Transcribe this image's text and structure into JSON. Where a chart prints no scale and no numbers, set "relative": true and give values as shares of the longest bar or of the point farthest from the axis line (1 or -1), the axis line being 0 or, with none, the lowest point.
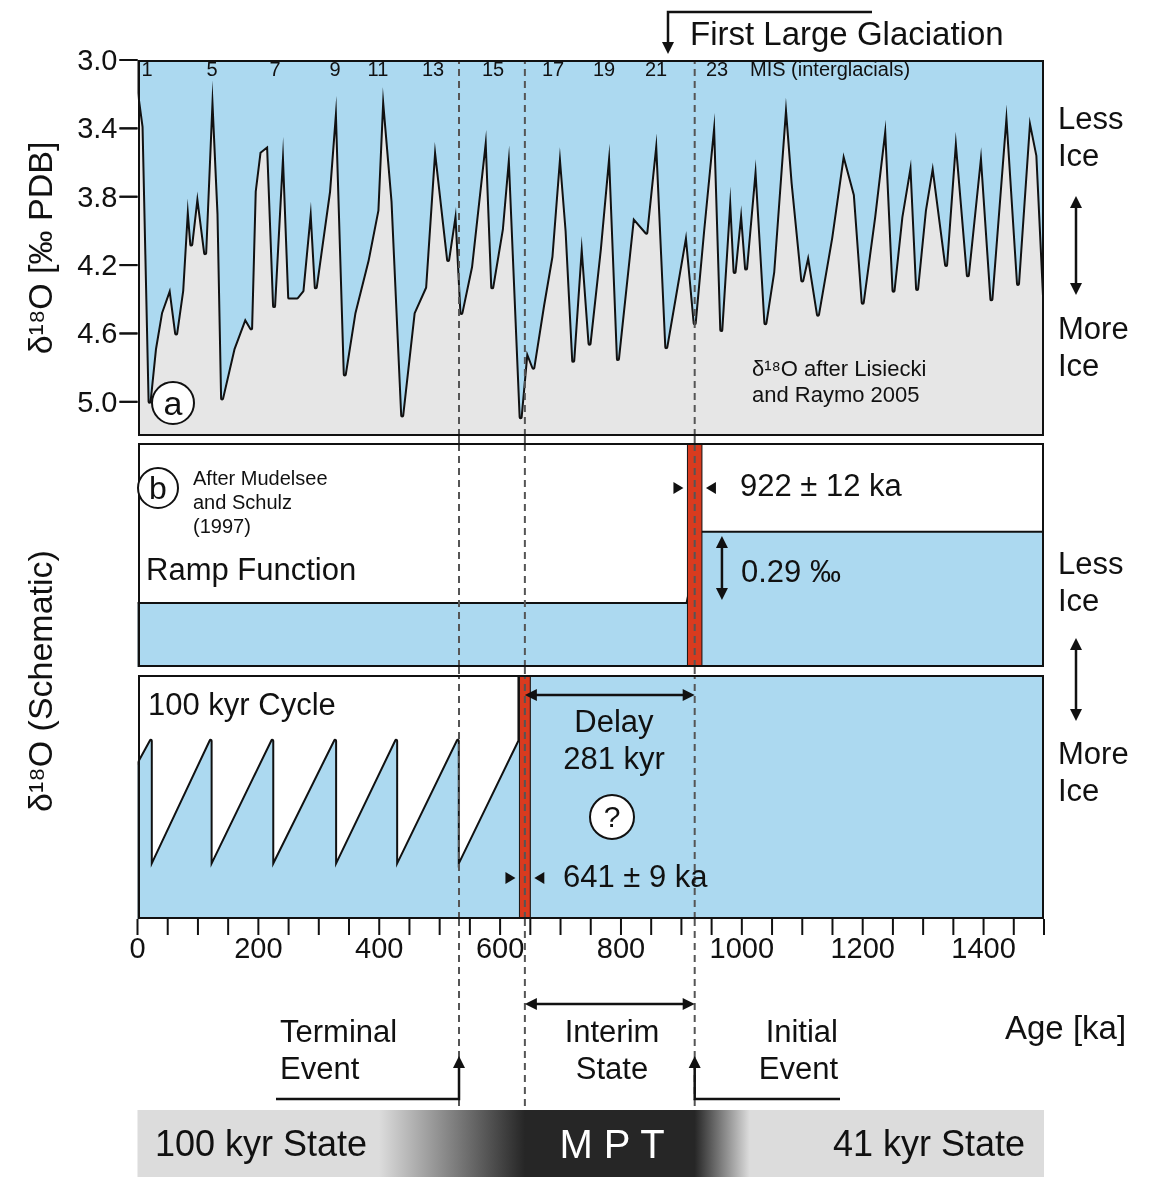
{
  "chart_data": [
    {
      "type": "area",
      "ylabel": "δ¹⁸O [‰ PDB]",
      "color": "#acd9f0",
      "tick_labels": "y",
      "xlim": [
        0,
        1500
      ],
      "ylim": [
        5.2,
        3.0
      ],
      "yticks": [
        {
          "value": 3.0,
          "label": "3.0"
        },
        {
          "value": 3.4,
          "label": "3.4"
        },
        {
          "value": 3.8,
          "label": "3.8"
        },
        {
          "value": 4.2,
          "label": "4.2"
        },
        {
          "value": 4.6,
          "label": "4.6"
        },
        {
          "value": 5.0,
          "label": "5.0"
        }
      ],
      "x": [
        2,
        10,
        20,
        29,
        39,
        54,
        64,
        74,
        83,
        89,
        99,
        112,
        124,
        134,
        140,
        159,
        178,
        188,
        194,
        202,
        216,
        226,
        241,
        251,
        264,
        273,
        287,
        295,
        317,
        329,
        343,
        359,
        381,
        397,
        406,
        422,
        438,
        457,
        476,
        492,
        514,
        527,
        536,
        552,
        577,
        587,
        603,
        615,
        634,
        644,
        655,
        671,
        685,
        699,
        710,
        721,
        735,
        748,
        765,
        781,
        795,
        820,
        842,
        859,
        875,
        892,
        908,
        922,
        936,
        955,
        966,
        981,
        988,
        999,
        1007,
        1023,
        1039,
        1052,
        1073,
        1084,
        1100,
        1110,
        1126,
        1148,
        1168,
        1187,
        1200,
        1219,
        1238,
        1251,
        1264,
        1280,
        1290,
        1303,
        1316,
        1338,
        1354,
        1374,
        1396,
        1413,
        1438,
        1457,
        1476,
        1489,
        1500
      ],
      "values": [
        3.18,
        3.39,
        5.0,
        4.69,
        4.48,
        4.33,
        4.6,
        4.35,
        3.81,
        4.08,
        3.77,
        4.13,
        3.12,
        3.9,
        4.98,
        4.69,
        4.51,
        4.57,
        3.77,
        3.54,
        3.5,
        4.44,
        3.45,
        4.39,
        4.39,
        4.35,
        3.83,
        4.33,
        3.77,
        3.21,
        4.84,
        4.48,
        4.17,
        3.88,
        3.16,
        3.83,
        5.08,
        4.48,
        4.33,
        3.48,
        4.17,
        3.86,
        4.48,
        4.21,
        3.41,
        4.33,
        3.99,
        3.5,
        5.09,
        4.7,
        4.8,
        4.44,
        4.15,
        3.51,
        4.0,
        4.76,
        4.03,
        4.66,
        4.11,
        3.49,
        4.75,
        3.92,
        4.01,
        3.43,
        4.68,
        4.33,
        4.0,
        4.54,
        4.0,
        3.31,
        4.58,
        3.74,
        4.24,
        3.85,
        4.22,
        3.58,
        4.54,
        4.24,
        3.22,
        3.72,
        4.29,
        4.13,
        4.49,
        4.04,
        3.54,
        3.79,
        4.42,
        3.92,
        3.35,
        4.35,
        3.92,
        3.58,
        4.34,
        3.88,
        3.6,
        4.2,
        3.42,
        4.26,
        3.51,
        4.4,
        3.26,
        4.31,
        3.33,
        3.56,
        4.38
      ],
      "ref_lines": [
        {
          "axis": "x",
          "value": 532,
          "color": "#555555",
          "line_style": "dashed"
        },
        {
          "axis": "x",
          "value": 641,
          "color": "#555555",
          "line_style": "dashed"
        },
        {
          "axis": "x",
          "value": 922,
          "color": "#555555",
          "line_style": "dashed"
        }
      ],
      "annotations": [
        "a",
        "1 5 7 9 11 13 15 17 19 21 23",
        "MIS (interglacials)",
        "First Large Glaciation",
        "δ¹⁸O after Lisiecki and Raymo 2005",
        "Less Ice",
        "More Ice"
      ]
    },
    {
      "type": "area",
      "ylabel": "δ¹⁸O (Schematic)",
      "color": "#acd9f0",
      "relative": true,
      "tick_labels": false,
      "xlim": [
        0,
        1500
      ],
      "x": [
        0,
        910,
        934,
        1500
      ],
      "values": [
        0.47,
        0.47,
        1,
        1
      ],
      "bands": [
        {
          "axis": "x",
          "from": 910,
          "to": 934,
          "color": "#d93b1f"
        }
      ],
      "ref_lines": [
        {
          "axis": "x",
          "value": 532,
          "color": "#555555",
          "line_style": "dashed"
        },
        {
          "axis": "x",
          "value": 641,
          "color": "#555555",
          "line_style": "dashed"
        },
        {
          "axis": "x",
          "value": 922,
          "color": "#555555",
          "line_style": "dashed"
        }
      ],
      "annotations": [
        "b",
        "After Mudelsee and Schulz (1997)",
        "Ramp Function",
        "922 ± 12 ka",
        "0.29 ‰",
        "Less Ice"
      ]
    },
    {
      "type": "area",
      "xlabel": "Age [ka]",
      "color": "#acd9f0",
      "relative": true,
      "tick_labels": "x",
      "xlim": [
        0,
        1500
      ],
      "xticks": [
        0,
        {
          "value": 50,
          "label": null
        },
        {
          "value": 100,
          "label": null
        },
        {
          "value": 150,
          "label": null
        },
        200,
        {
          "value": 250,
          "label": null
        },
        {
          "value": 300,
          "label": null
        },
        {
          "value": 350,
          "label": null
        },
        400,
        {
          "value": 450,
          "label": null
        },
        {
          "value": 500,
          "label": null
        },
        {
          "value": 550,
          "label": null
        },
        600,
        {
          "value": 650,
          "label": null
        },
        {
          "value": 700,
          "label": null
        },
        {
          "value": 750,
          "label": null
        },
        800,
        {
          "value": 850,
          "label": null
        },
        {
          "value": 900,
          "label": null
        },
        {
          "value": 950,
          "label": null
        },
        1000,
        {
          "value": 1050,
          "label": null
        },
        {
          "value": 1100,
          "label": null
        },
        {
          "value": 1150,
          "label": null
        },
        1200,
        {
          "value": 1250,
          "label": null
        },
        {
          "value": 1300,
          "label": null
        },
        {
          "value": 1350,
          "label": null
        },
        1400,
        {
          "value": 1450,
          "label": null
        },
        {
          "value": 1500,
          "label": null
        }
      ],
      "x": [
        0,
        22,
        22,
        121,
        121,
        223,
        223,
        327,
        327,
        428,
        428,
        530,
        530,
        632,
        632,
        1500
      ],
      "values": [
        0.63,
        0.73,
        0.21,
        0.73,
        0.21,
        0.73,
        0.21,
        0.73,
        0.21,
        0.73,
        0.21,
        0.73,
        0.21,
        0.73,
        1,
        1
      ],
      "bands": [
        {
          "axis": "x",
          "from": 632,
          "to": 650,
          "color": "#d93b1f"
        }
      ],
      "ref_lines": [
        {
          "axis": "x",
          "value": 532,
          "color": "#555555",
          "line_style": "dashed"
        },
        {
          "axis": "x",
          "value": 641,
          "color": "#555555",
          "line_style": "dashed"
        },
        {
          "axis": "x",
          "value": 922,
          "color": "#555555",
          "line_style": "dashed"
        }
      ],
      "annotations": [
        "100 kyr Cycle",
        "Delay 281 kyr",
        "?",
        "641 ± 9 ka",
        "More Ice",
        "Terminal Event",
        "Interim State",
        "Initial Event",
        "100 kyr State",
        "M P T",
        "41 kyr State"
      ]
    }
  ]
}
